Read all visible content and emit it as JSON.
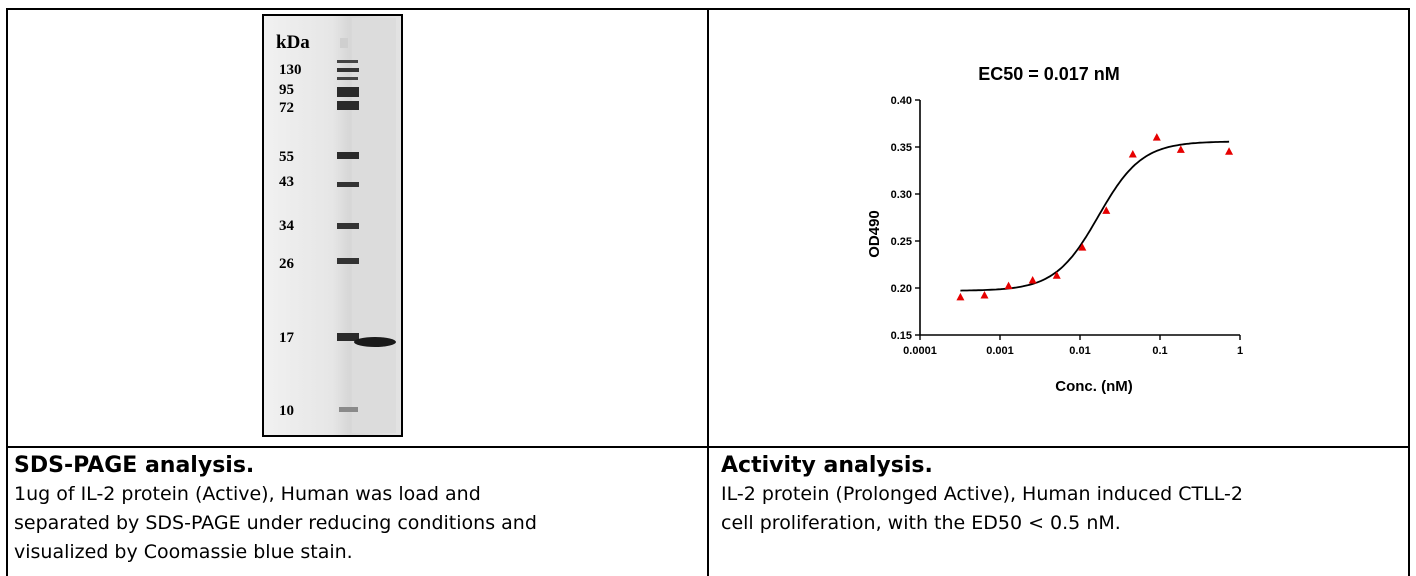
{
  "gel": {
    "unit_label": "kDa",
    "markers": [
      "130",
      "95",
      "72",
      "55",
      "43",
      "34",
      "26",
      "17",
      "10"
    ]
  },
  "left_caption": {
    "title": "SDS-PAGE analysis.",
    "line1": "1ug of IL-2 protein (Active), Human was load and",
    "line2": "separated by SDS-PAGE under reducing conditions and",
    "line3": "visualized by Coomassie blue stain."
  },
  "right_caption": {
    "title": "Activity analysis.",
    "line1": "IL-2 protein (Prolonged Active), Human induced CTLL-2",
    "line2": "cell proliferation, with the ED50 < 0.5 nM."
  },
  "chart_data": {
    "type": "scatter",
    "title": "EC50 = 0.017 nM",
    "xlabel": "Conc. (nM)",
    "ylabel": "OD490",
    "x_scale": "log",
    "xlim": [
      0.0001,
      1
    ],
    "ylim": [
      0.15,
      0.4
    ],
    "x_ticks": [
      "0.0001",
      "0.001",
      "0.01",
      "0.1",
      "1"
    ],
    "y_ticks": [
      "0.15",
      "0.20",
      "0.25",
      "0.30",
      "0.35",
      "0.40"
    ],
    "marker_color": "#e60000",
    "curve_color": "#000000",
    "points": [
      {
        "x": 0.00032,
        "y": 0.19
      },
      {
        "x": 0.00064,
        "y": 0.192
      },
      {
        "x": 0.00128,
        "y": 0.202
      },
      {
        "x": 0.00256,
        "y": 0.208
      },
      {
        "x": 0.00512,
        "y": 0.213
      },
      {
        "x": 0.0107,
        "y": 0.243
      },
      {
        "x": 0.0213,
        "y": 0.282
      },
      {
        "x": 0.0457,
        "y": 0.342
      },
      {
        "x": 0.0912,
        "y": 0.36
      },
      {
        "x": 0.182,
        "y": 0.347
      },
      {
        "x": 0.73,
        "y": 0.345
      }
    ],
    "fit": {
      "bottom": 0.197,
      "top": 0.356,
      "ec50": 0.017,
      "hill": 1.6
    }
  }
}
